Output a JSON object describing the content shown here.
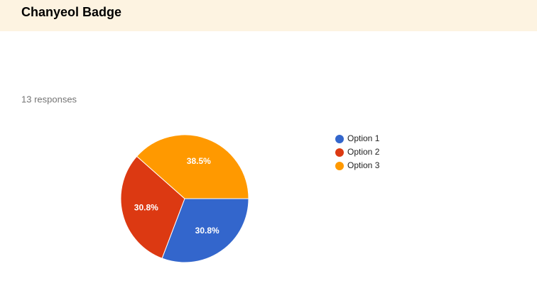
{
  "chart_data": {
    "type": "pie",
    "title": "Chanyeol Badge",
    "subtitle": "13 responses",
    "categories": [
      "Option 1",
      "Option 2",
      "Option 3"
    ],
    "values": [
      30.8,
      30.8,
      38.5
    ],
    "value_labels": [
      "30.8%",
      "30.8%",
      "38.5%"
    ],
    "colors": [
      "#3366cc",
      "#dc3912",
      "#ff9900"
    ]
  }
}
